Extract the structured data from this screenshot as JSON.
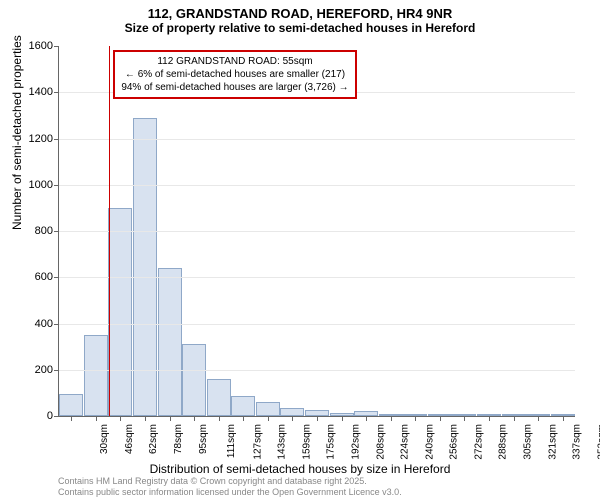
{
  "title": "112, GRANDSTAND ROAD, HEREFORD, HR4 9NR",
  "subtitle": "Size of property relative to semi-detached houses in Hereford",
  "chart": {
    "type": "histogram",
    "ylabel": "Number of semi-detached properties",
    "xlabel": "Distribution of semi-detached houses by size in Hereford",
    "ylim": [
      0,
      1600
    ],
    "ytick_step": 200,
    "yticks": [
      0,
      200,
      400,
      600,
      800,
      1000,
      1200,
      1400,
      1600
    ],
    "xticks": [
      "30sqm",
      "46sqm",
      "62sqm",
      "78sqm",
      "95sqm",
      "111sqm",
      "127sqm",
      "143sqm",
      "159sqm",
      "175sqm",
      "192sqm",
      "208sqm",
      "224sqm",
      "240sqm",
      "256sqm",
      "272sqm",
      "288sqm",
      "305sqm",
      "321sqm",
      "337sqm",
      "353sqm"
    ],
    "bars": [
      {
        "x": 30,
        "value": 95
      },
      {
        "x": 46,
        "value": 350
      },
      {
        "x": 62,
        "value": 900
      },
      {
        "x": 78,
        "value": 1290
      },
      {
        "x": 95,
        "value": 640
      },
      {
        "x": 111,
        "value": 310
      },
      {
        "x": 127,
        "value": 160
      },
      {
        "x": 143,
        "value": 85
      },
      {
        "x": 159,
        "value": 60
      },
      {
        "x": 175,
        "value": 35
      },
      {
        "x": 192,
        "value": 25
      },
      {
        "x": 208,
        "value": 15
      },
      {
        "x": 224,
        "value": 20
      },
      {
        "x": 240,
        "value": 5
      },
      {
        "x": 256,
        "value": 5
      },
      {
        "x": 272,
        "value": 3
      },
      {
        "x": 288,
        "value": 2
      },
      {
        "x": 305,
        "value": 2
      },
      {
        "x": 321,
        "value": 1
      },
      {
        "x": 337,
        "value": 1
      },
      {
        "x": 353,
        "value": 1
      }
    ],
    "bar_color": "#d8e2f0",
    "bar_border_color": "#8fa8c8",
    "background_color": "#ffffff",
    "grid_color": "#e8e8e8",
    "axis_color": "#666666",
    "marker_line": {
      "x_value": 55,
      "color": "#cc0000"
    },
    "annotation": {
      "line1": "112 GRANDSTAND ROAD: 55sqm",
      "line2": "← 6% of semi-detached houses are smaller (217)",
      "line3": "94% of semi-detached houses are larger (3,726) →",
      "border_color": "#cc0000"
    }
  },
  "footer": {
    "line1": "Contains HM Land Registry data © Crown copyright and database right 2025.",
    "line2": "Contains public sector information licensed under the Open Government Licence v3.0."
  }
}
